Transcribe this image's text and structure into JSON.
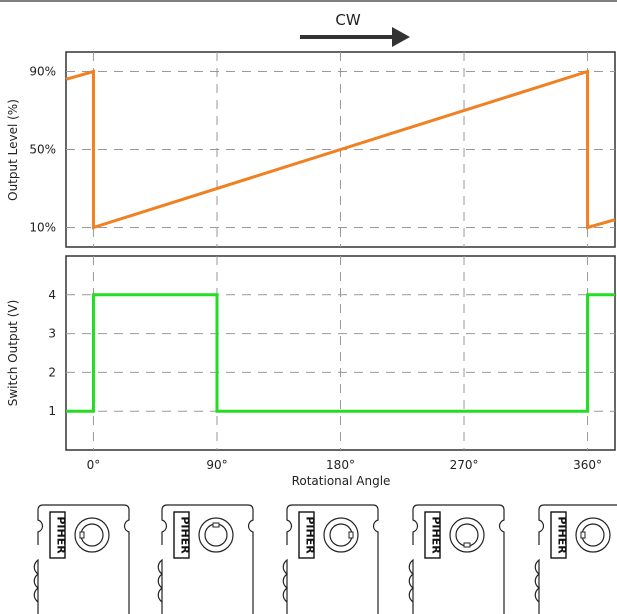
{
  "direction": {
    "label": "CW"
  },
  "chart_data": [
    {
      "type": "line",
      "xlabel": "Rotational Angle",
      "ylabel": "Output Level (%)",
      "ytick_labels": [
        "10%",
        "50%",
        "90%"
      ],
      "yticks": [
        10,
        50,
        90
      ],
      "ylim": [
        0,
        100
      ],
      "xlim": [
        -20,
        380
      ],
      "xticks": [
        0,
        90,
        180,
        270,
        360
      ],
      "grid": true,
      "color": "#f08020",
      "x": [
        -20,
        0,
        0,
        360,
        360,
        380
      ],
      "values": [
        86,
        90,
        10,
        90,
        10,
        14
      ]
    },
    {
      "type": "line",
      "xlabel": "Rotational Angle",
      "ylabel": "Switch Output (V)",
      "ytick_labels": [
        "1",
        "2",
        "3",
        "4"
      ],
      "yticks": [
        1,
        2,
        3,
        4
      ],
      "ylim": [
        0,
        5
      ],
      "xlim": [
        -20,
        380
      ],
      "xticks": [
        0,
        90,
        180,
        270,
        360
      ],
      "xtick_labels": [
        "0°",
        "90°",
        "180°",
        "270°",
        "360°"
      ],
      "grid": true,
      "color": "#22dd22",
      "x": [
        -20,
        0,
        0,
        90,
        90,
        360,
        360,
        380
      ],
      "values": [
        1,
        1,
        4,
        4,
        1,
        1,
        4,
        4
      ]
    }
  ],
  "potentiometers": {
    "brand": "PIHER",
    "count": 5,
    "angles": [
      0,
      90,
      180,
      270,
      360
    ]
  }
}
